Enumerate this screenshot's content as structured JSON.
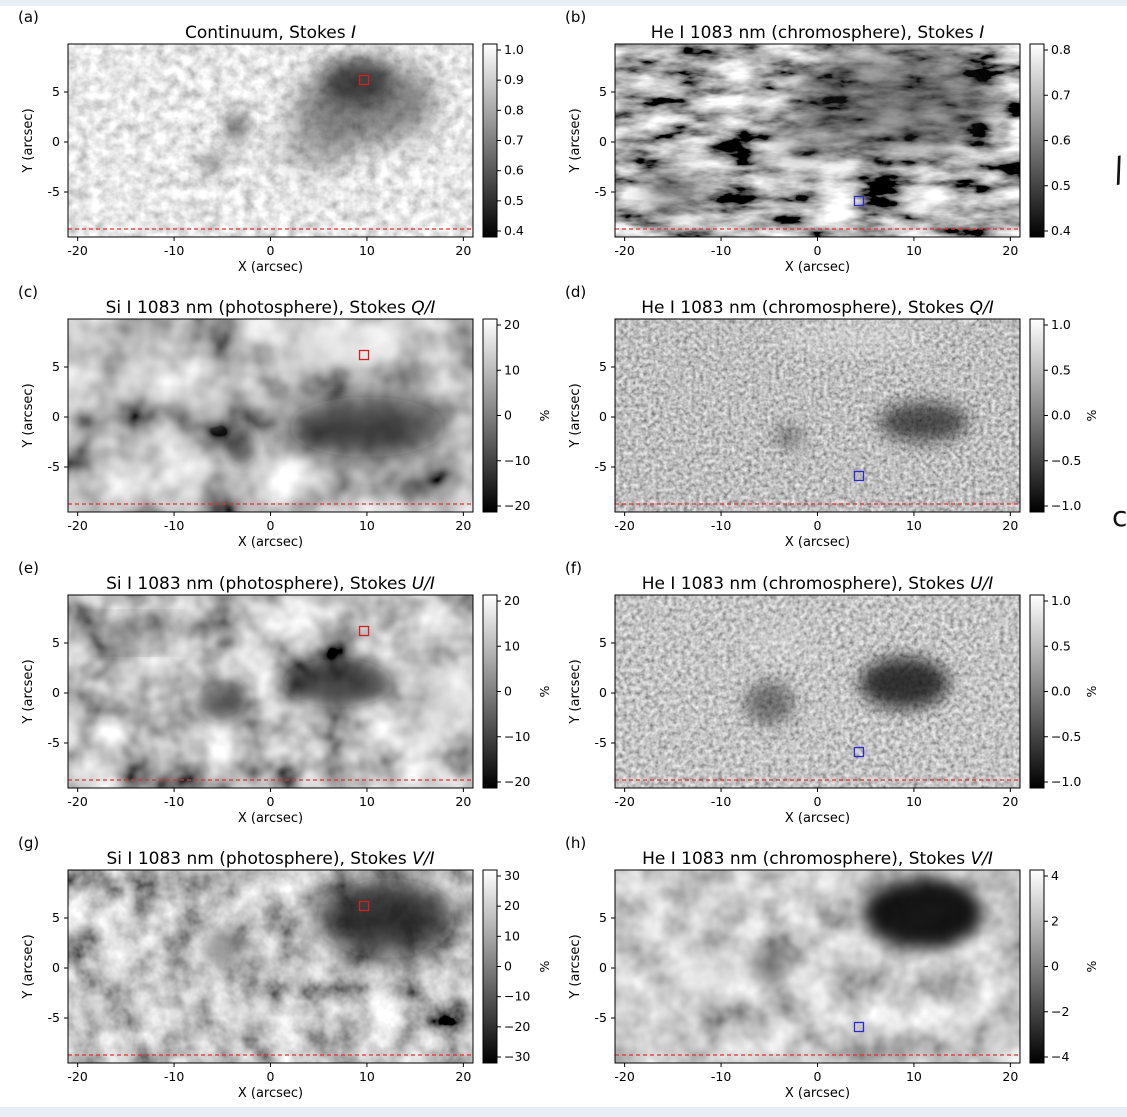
{
  "figure": {
    "colors": {
      "red_marker": "#d62020",
      "blue_marker": "#2a2ad0",
      "dashed_line": "#e03030"
    },
    "panels": [
      {
        "id": "a",
        "label": "(a)",
        "title": "Continuum, Stokes ",
        "title_italic": "I",
        "colorbar_ticks": [
          "1.0",
          "0.9",
          "0.8",
          "0.7",
          "0.6",
          "0.5",
          "0.4"
        ],
        "colorbar_unit": "",
        "marker": {
          "color": "red",
          "x": 9.7,
          "y": 6.2
        },
        "texture": "continuum"
      },
      {
        "id": "b",
        "label": "(b)",
        "title": "He I 1083 nm (chromosphere), Stokes ",
        "title_italic": "I",
        "colorbar_ticks": [
          "0.8",
          "0.7",
          "0.6",
          "0.5",
          "0.4"
        ],
        "colorbar_unit": "",
        "marker": {
          "color": "blue",
          "x": 4.3,
          "y": -5.9
        },
        "texture": "he_i"
      },
      {
        "id": "c",
        "label": "(c)",
        "title": "Si I 1083 nm (photosphere), Stokes ",
        "title_italic": "Q/I",
        "colorbar_ticks": [
          "20",
          "10",
          "0",
          "−10",
          "−20"
        ],
        "colorbar_unit": "%",
        "marker": {
          "color": "red",
          "x": 9.7,
          "y": 6.2
        },
        "texture": "si_q"
      },
      {
        "id": "d",
        "label": "(d)",
        "title": "He I 1083 nm (chromosphere), Stokes ",
        "title_italic": "Q/I",
        "colorbar_ticks": [
          "1.0",
          "0.5",
          "0.0",
          "−0.5",
          "−1.0"
        ],
        "colorbar_unit": "%",
        "marker": {
          "color": "blue",
          "x": 4.3,
          "y": -5.9
        },
        "texture": "he_q"
      },
      {
        "id": "e",
        "label": "(e)",
        "title": "Si I 1083 nm (photosphere), Stokes ",
        "title_italic": "U/I",
        "colorbar_ticks": [
          "20",
          "10",
          "0",
          "−10",
          "−20"
        ],
        "colorbar_unit": "%",
        "marker": {
          "color": "red",
          "x": 9.7,
          "y": 6.2
        },
        "texture": "si_u"
      },
      {
        "id": "f",
        "label": "(f)",
        "title": "He I 1083 nm (chromosphere), Stokes ",
        "title_italic": "U/I",
        "colorbar_ticks": [
          "1.0",
          "0.5",
          "0.0",
          "−0.5",
          "−1.0"
        ],
        "colorbar_unit": "%",
        "marker": {
          "color": "blue",
          "x": 4.3,
          "y": -5.9
        },
        "texture": "he_u"
      },
      {
        "id": "g",
        "label": "(g)",
        "title": "Si I 1083 nm (photosphere), Stokes ",
        "title_italic": "V/I",
        "colorbar_ticks": [
          "30",
          "20",
          "10",
          "0",
          "−10",
          "−20",
          "−30"
        ],
        "colorbar_unit": "%",
        "marker": {
          "color": "red",
          "x": 9.7,
          "y": 6.2
        },
        "texture": "si_v"
      },
      {
        "id": "h",
        "label": "(h)",
        "title": "He I 1083 nm (chromosphere), Stokes ",
        "title_italic": "V/I",
        "colorbar_ticks": [
          "4",
          "2",
          "0",
          "−2",
          "−4"
        ],
        "colorbar_unit": "%",
        "marker": {
          "color": "blue",
          "x": 4.3,
          "y": -5.9
        },
        "texture": "he_v"
      }
    ],
    "x_axis": {
      "label": "X (arcsec)",
      "ticks": [
        "-20",
        "-10",
        "0",
        "10",
        "20"
      ],
      "tick_values": [
        -20,
        -10,
        0,
        10,
        20
      ],
      "range": [
        -21,
        21
      ]
    },
    "y_axis": {
      "label": "Y (arcsec)",
      "ticks": [
        "5",
        "0",
        "-5"
      ],
      "tick_values": [
        5,
        0,
        -5
      ],
      "range": [
        -9.5,
        9.8
      ]
    },
    "dashed_line_y": -8.7
  }
}
